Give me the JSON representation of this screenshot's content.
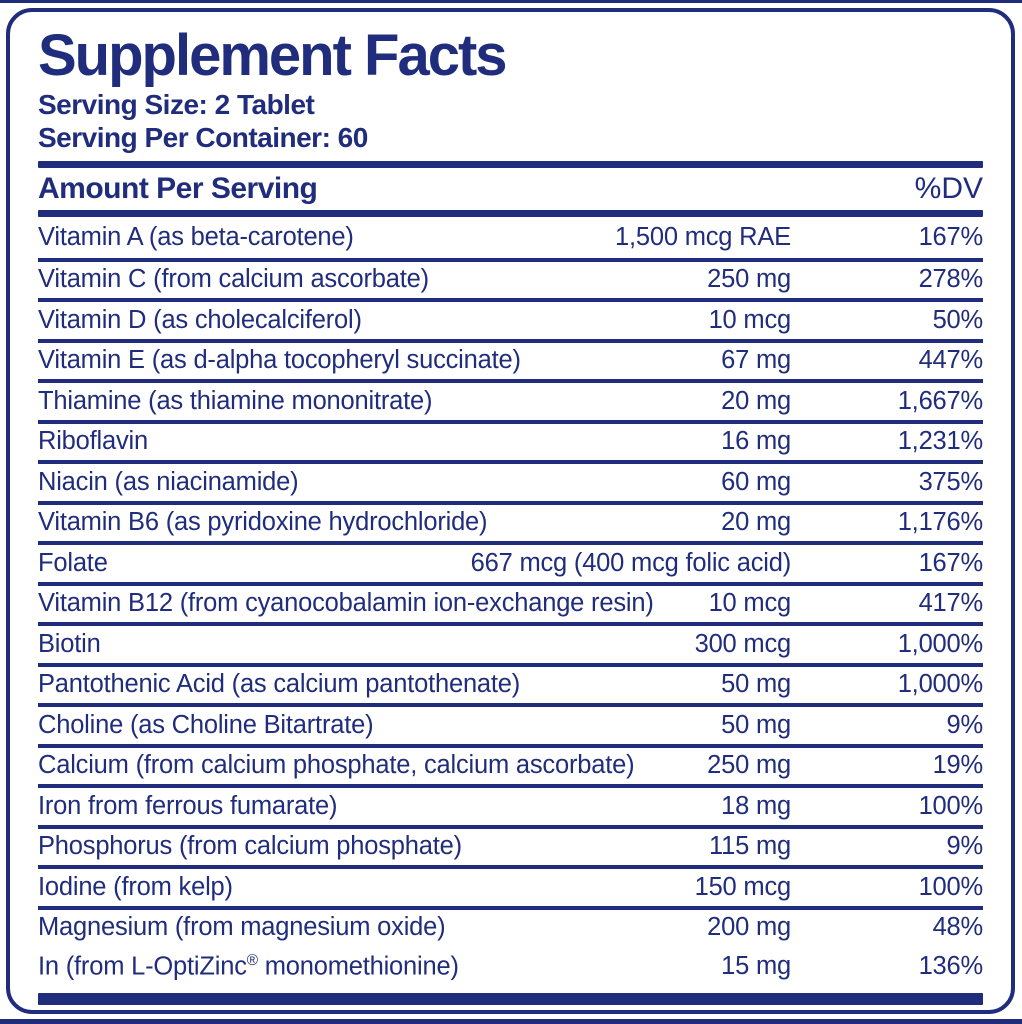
{
  "label": {
    "title": "Supplement Facts",
    "serving_size": "Serving Size: 2 Tablet",
    "servings_per_container": "Serving Per Container: 60",
    "columns": {
      "amount": "Amount Per Serving",
      "dv": "%DV"
    },
    "rows": [
      {
        "name": "Vitamin A (as beta-carotene)",
        "amount": "1,500 mcg RAE",
        "dv": "167%",
        "divider": false
      },
      {
        "name": "Vitamin C (from calcium ascorbate)",
        "amount": "250 mg",
        "dv": "278%",
        "divider": true
      },
      {
        "name": "Vitamin D (as cholecalciferol)",
        "amount": "10 mcg",
        "dv": "50%",
        "divider": true
      },
      {
        "name": "Vitamin E (as d-alpha tocopheryl succinate)",
        "amount": "67 mg",
        "dv": "447%",
        "divider": true
      },
      {
        "name": "Thiamine (as thiamine mononitrate)",
        "amount": "20 mg",
        "dv": "1,667%",
        "divider": true
      },
      {
        "name": "Riboflavin",
        "amount": "16 mg",
        "dv": "1,231%",
        "divider": true
      },
      {
        "name": "Niacin (as niacinamide)",
        "amount": "60 mg",
        "dv": "375%",
        "divider": true
      },
      {
        "name": "Vitamin B6 (as pyridoxine hydrochloride)",
        "amount": "20 mg",
        "dv": "1,176%",
        "divider": true
      },
      {
        "name": "Folate",
        "amount": "667 mcg (400 mcg folic acid)",
        "dv": "167%",
        "divider": true
      },
      {
        "name": "Vitamin B12 (from cyanocobalamin ion-exchange resin)",
        "amount": "10 mcg",
        "dv": "417%",
        "divider": true
      },
      {
        "name": "Biotin",
        "amount": "300 mcg",
        "dv": "1,000%",
        "divider": true
      },
      {
        "name": "Pantothenic Acid (as calcium pantothenate)",
        "amount": "50 mg",
        "dv": "1,000%",
        "divider": true
      },
      {
        "name": "Choline (as Choline Bitartrate)",
        "amount": "50 mg",
        "dv": "9%",
        "divider": true
      },
      {
        "name": "Calcium  (from calcium phosphate, calcium ascorbate)",
        "amount": "250 mg",
        "dv": "19%",
        "divider": true
      },
      {
        "name": "Iron from ferrous fumarate)",
        "amount": "18 mg",
        "dv": "100%",
        "divider": true
      },
      {
        "name": "Phosphorus (from calcium phosphate)",
        "amount": "115 mg",
        "dv": "9%",
        "divider": true
      },
      {
        "name": "Iodine (from kelp)",
        "amount": "150 mcg",
        "dv": "100%",
        "divider": true
      },
      {
        "name": "Magnesium (from magnesium oxide)",
        "amount": "200 mg",
        "dv": "48%",
        "divider": true
      },
      {
        "name": "In (from L-OptiZinc® monomethionine)",
        "amount": "15 mg",
        "dv": "136%",
        "divider": false
      }
    ],
    "colors": {
      "navy": "#202c7c",
      "background": "#ffffff"
    }
  }
}
